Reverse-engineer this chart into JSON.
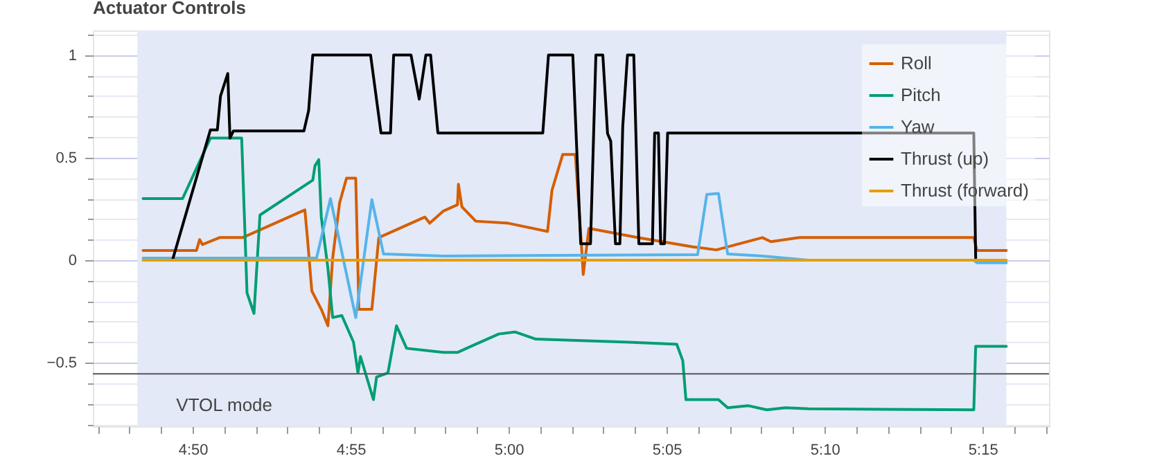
{
  "chart_data": {
    "type": "line",
    "title": "Actuator Controls",
    "xlim": [
      286.84,
      317.1
    ],
    "xticks": [
      {
        "value": 287,
        "label": null
      },
      {
        "value": 288,
        "label": null
      },
      {
        "value": 289,
        "label": null
      },
      {
        "value": 290,
        "label": "4:50"
      },
      {
        "value": 291,
        "label": null
      },
      {
        "value": 292,
        "label": null
      },
      {
        "value": 293,
        "label": null
      },
      {
        "value": 294,
        "label": null
      },
      {
        "value": 295,
        "label": "4:55"
      },
      {
        "value": 296,
        "label": null
      },
      {
        "value": 297,
        "label": null
      },
      {
        "value": 298,
        "label": null
      },
      {
        "value": 299,
        "label": null
      },
      {
        "value": 300,
        "label": "5:00"
      },
      {
        "value": 301,
        "label": null
      },
      {
        "value": 302,
        "label": null
      },
      {
        "value": 303,
        "label": null
      },
      {
        "value": 304,
        "label": null
      },
      {
        "value": 305,
        "label": "5:05"
      },
      {
        "value": 306,
        "label": null
      },
      {
        "value": 307,
        "label": null
      },
      {
        "value": 308,
        "label": null
      },
      {
        "value": 309,
        "label": null
      },
      {
        "value": 310,
        "label": "5:10"
      },
      {
        "value": 311,
        "label": null
      },
      {
        "value": 312,
        "label": null
      },
      {
        "value": 313,
        "label": null
      },
      {
        "value": 314,
        "label": null
      },
      {
        "value": 315,
        "label": "5:15"
      },
      {
        "value": 316,
        "label": null
      },
      {
        "value": 317,
        "label": null
      }
    ],
    "ylim": [
      -0.81,
      1.12
    ],
    "yticks": [
      {
        "value": -0.8,
        "label": null
      },
      {
        "value": -0.7,
        "label": null
      },
      {
        "value": -0.6,
        "label": null
      },
      {
        "value": -0.5,
        "label": "−0.5"
      },
      {
        "value": -0.4,
        "label": null
      },
      {
        "value": -0.3,
        "label": null
      },
      {
        "value": -0.2,
        "label": null
      },
      {
        "value": -0.1,
        "label": null
      },
      0,
      {
        "value": 0.1,
        "label": null
      },
      {
        "value": 0.2,
        "label": null
      },
      {
        "value": 0.3,
        "label": null
      },
      {
        "value": 0.4,
        "label": null
      },
      0.5,
      {
        "value": 0.6,
        "label": null
      },
      {
        "value": 0.7,
        "label": null
      },
      {
        "value": 0.8,
        "label": null
      },
      {
        "value": 0.9,
        "label": null
      },
      1,
      {
        "value": 1.1,
        "label": null
      }
    ],
    "grid": "y",
    "legend": "top right",
    "marker": "none",
    "line_style": "solid",
    "bands": [
      {
        "axis": "x",
        "from": 288.25,
        "to": 315.75,
        "label": "VTOL mode",
        "color": "#e3e9f7"
      }
    ],
    "ref_lines": [
      {
        "axis": "y",
        "value": -0.554,
        "color": "#555555"
      }
    ],
    "series": [
      {
        "name": "Roll",
        "color": "#d55e00",
        "x": [
          288.43,
          290.12,
          290.22,
          290.31,
          290.85,
          291.58,
          293.55,
          293.63,
          293.77,
          294.07,
          294.28,
          294.43,
          294.65,
          294.87,
          295.16,
          295.26,
          295.67,
          295.89,
          297.35,
          297.5,
          297.94,
          298.38,
          298.41,
          298.52,
          298.96,
          299.99,
          301.23,
          301.37,
          301.71,
          302.11,
          302.3,
          302.36,
          302.54,
          304.08,
          305.83,
          306.57,
          308.03,
          308.3,
          309.2,
          310.22,
          314.72,
          314.82,
          315.75
        ],
        "values": [
          0.047,
          0.047,
          0.1,
          0.076,
          0.11,
          0.11,
          0.245,
          0.11,
          -0.15,
          -0.24,
          -0.32,
          0.01,
          0.28,
          0.4,
          0.4,
          -0.24,
          -0.24,
          0.11,
          0.21,
          0.18,
          0.24,
          0.27,
          0.37,
          0.26,
          0.19,
          0.18,
          0.14,
          0.34,
          0.515,
          0.515,
          0.08,
          -0.07,
          0.155,
          0.11,
          0.065,
          0.05,
          0.11,
          0.09,
          0.11,
          0.11,
          0.11,
          0.047,
          0.047
        ]
      },
      {
        "name": "Pitch",
        "color": "#009e73",
        "x": [
          288.43,
          289.68,
          290.56,
          291.55,
          291.72,
          291.94,
          292.13,
          293.8,
          293.87,
          293.99,
          294.07,
          294.28,
          294.43,
          294.72,
          295.09,
          295.23,
          295.31,
          295.72,
          295.82,
          296.18,
          296.45,
          296.77,
          297.94,
          298.38,
          298.96,
          299.69,
          300.2,
          300.86,
          303.79,
          305.32,
          305.51,
          305.61,
          306.64,
          306.93,
          307.59,
          308.17,
          308.76,
          309.49,
          314.72,
          314.78,
          315.75
        ],
        "values": [
          0.3,
          0.3,
          0.595,
          0.595,
          -0.16,
          -0.26,
          0.22,
          0.39,
          0.46,
          0.49,
          0.21,
          -0.04,
          -0.28,
          -0.27,
          -0.4,
          -0.55,
          -0.47,
          -0.68,
          -0.57,
          -0.55,
          -0.32,
          -0.43,
          -0.45,
          -0.45,
          -0.41,
          -0.36,
          -0.35,
          -0.385,
          -0.4,
          -0.41,
          -0.49,
          -0.68,
          -0.68,
          -0.72,
          -0.71,
          -0.73,
          -0.72,
          -0.725,
          -0.73,
          -0.42,
          -0.42
        ]
      },
      {
        "name": "Yaw",
        "color": "#56b4e9",
        "x": [
          288.43,
          293.92,
          294.36,
          295.16,
          295.67,
          296.04,
          297.94,
          305.98,
          306.27,
          306.64,
          306.93,
          308.03,
          309.49,
          314.72,
          314.82,
          315.75
        ],
        "values": [
          0.01,
          0.01,
          0.3,
          -0.28,
          0.295,
          0.03,
          0.02,
          0.027,
          0.32,
          0.325,
          0.03,
          0.02,
          0,
          0,
          -0.013,
          -0.013
        ]
      },
      {
        "name": "Thrust (up)",
        "color": "#000000",
        "x": [
          289.36,
          290.56,
          290.78,
          290.88,
          291.11,
          291.18,
          291.29,
          293.52,
          293.67,
          293.8,
          295.63,
          295.96,
          296.26,
          296.36,
          296.91,
          297.17,
          297.38,
          297.53,
          297.76,
          301.08,
          301.26,
          302.03,
          302.28,
          302.59,
          302.76,
          302.98,
          303.13,
          303.23,
          303.38,
          303.52,
          303.61,
          303.76,
          303.96,
          304.12,
          304.55,
          304.62,
          304.74,
          304.81,
          304.93,
          305.03,
          314.72,
          314.78
        ],
        "values": [
          0,
          0.635,
          0.635,
          0.8,
          0.91,
          0.595,
          0.63,
          0.63,
          0.73,
          1,
          1,
          0.62,
          0.62,
          1,
          1,
          0.785,
          1,
          1,
          0.62,
          0.62,
          1,
          1,
          0.08,
          0.08,
          1,
          1,
          0.617,
          0.58,
          0.08,
          0.08,
          0.65,
          1,
          1,
          0.08,
          0.08,
          0.62,
          0.62,
          0.08,
          0.08,
          0.62,
          0.62,
          0.01
        ]
      },
      {
        "name": "Thrust (forward)",
        "color": "#e69f00",
        "x": [
          288.43,
          315.75
        ],
        "values": [
          0,
          0
        ]
      }
    ]
  }
}
